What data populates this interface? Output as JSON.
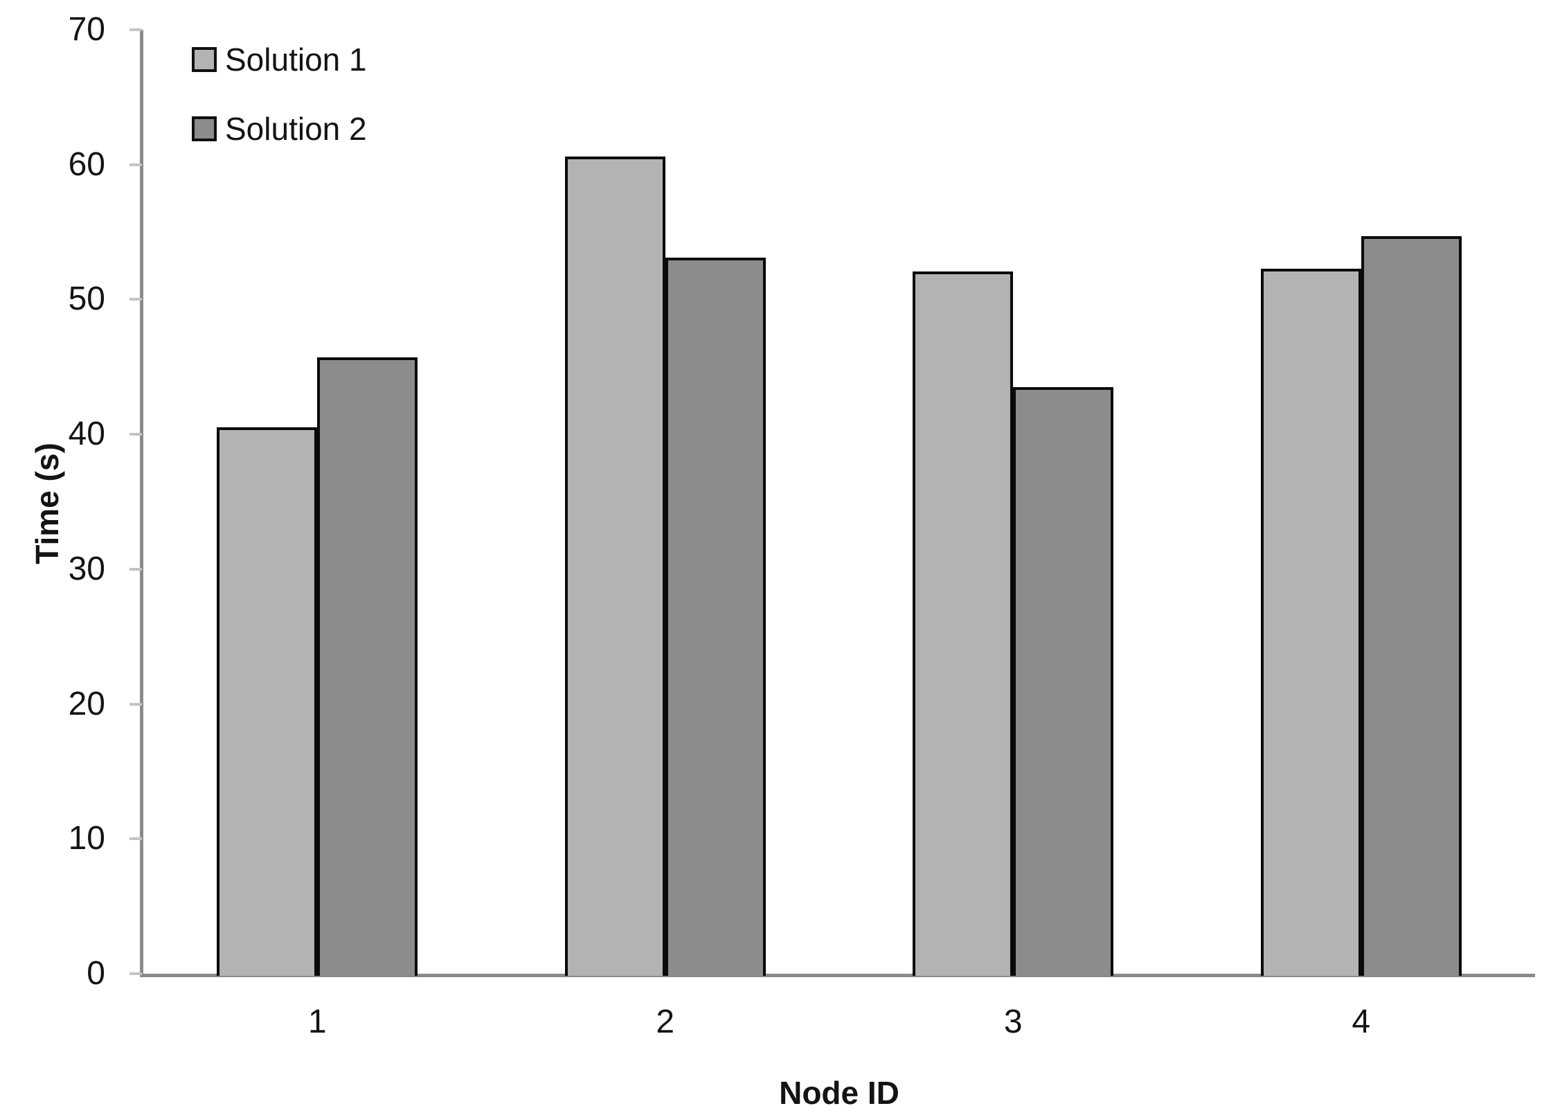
{
  "chart_data": {
    "type": "bar",
    "title": "",
    "categories": [
      "1",
      "2",
      "3",
      "4"
    ],
    "series": [
      {
        "name": "Solution 1",
        "color": "#b3b3b3",
        "values": [
          40.5,
          60.6,
          52.1,
          52.3
        ]
      },
      {
        "name": "Solution 2",
        "color": "#8c8c8c",
        "values": [
          45.7,
          53.1,
          43.5,
          54.7
        ]
      }
    ],
    "xlabel": "Node ID",
    "ylabel": "Time (s)",
    "ylim": [
      0,
      70
    ],
    "yticks": [
      0,
      10,
      20,
      30,
      40,
      50,
      60,
      70
    ],
    "grid": false,
    "legend_position": "top-left",
    "colors": {
      "bar_border": "#0a0a0a",
      "axis_line": "#8a8a8a",
      "tick_mark": "#c4c4c4",
      "text": "#141414",
      "background": "#ffffff"
    }
  }
}
